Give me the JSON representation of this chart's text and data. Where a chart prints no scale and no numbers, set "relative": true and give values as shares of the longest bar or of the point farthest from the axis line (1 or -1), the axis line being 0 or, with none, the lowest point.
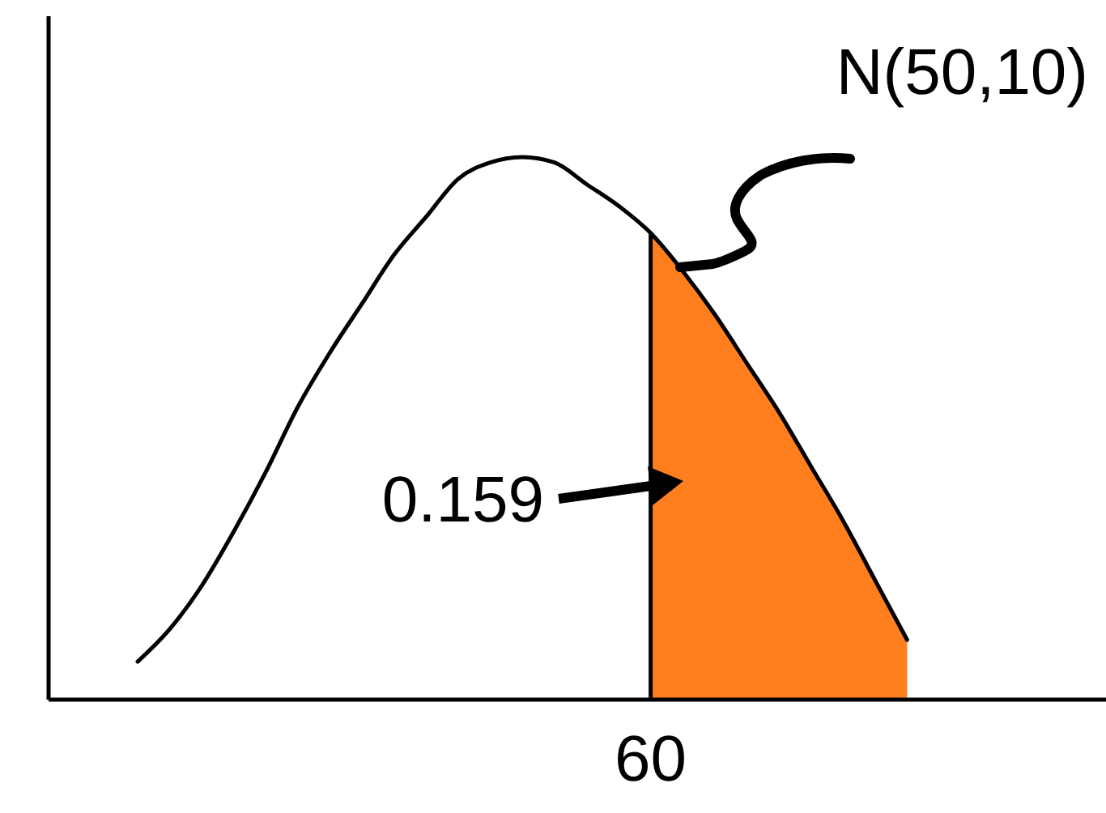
{
  "chart_data": {
    "type": "line",
    "relative": true,
    "categories": [
      null,
      null,
      null,
      null,
      null,
      null,
      null,
      null,
      null,
      null,
      null,
      null,
      null,
      null,
      null,
      null,
      null,
      null,
      null,
      null,
      null,
      null,
      null,
      null,
      null
    ],
    "series": [
      {
        "type": "area",
        "color": "#ff7f1e",
        "values": [
          null,
          null,
          null,
          null,
          null,
          null,
          null,
          null,
          null,
          null,
          null,
          null,
          null,
          null,
          null,
          null,
          0.86,
          0.79,
          0.71,
          0.62,
          0.53,
          0.43,
          0.33,
          0.22,
          0.11
        ]
      },
      {
        "type": "line",
        "color": "#000000",
        "values": [
          0.07,
          0.13,
          0.21,
          0.31,
          0.42,
          0.54,
          0.64,
          0.73,
          0.82,
          0.89,
          0.96,
          0.99,
          1,
          0.99,
          0.95,
          0.91,
          0.86,
          0.79,
          0.71,
          0.62,
          0.53,
          0.43,
          0.33,
          0.22,
          0.11
        ]
      }
    ],
    "annotations": [
      "N(50,10)",
      "0.159",
      "60"
    ]
  }
}
